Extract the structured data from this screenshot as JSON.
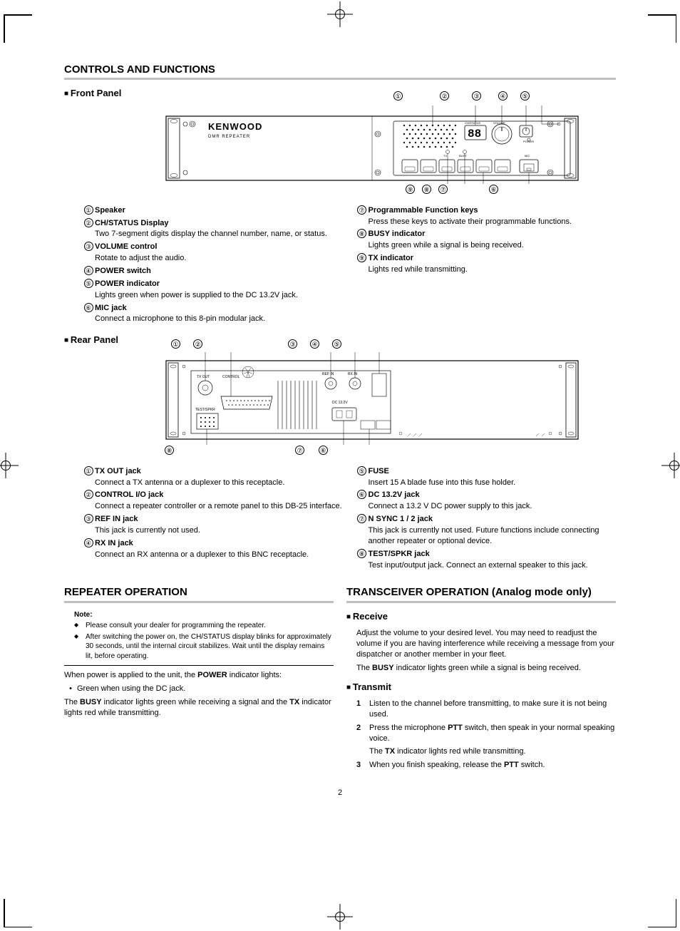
{
  "page_number": "2",
  "section1": {
    "title": "CONTROLS AND FUNCTIONS",
    "front_panel": {
      "heading": "Front Panel",
      "brand": "KENWOOD",
      "subbrand": "DMR REPEATER",
      "left_items": [
        {
          "n": "①",
          "title": "Speaker",
          "text": ""
        },
        {
          "n": "②",
          "title": "CH/STATUS Display",
          "text": "Two 7-segment digits display the channel number, name, or status."
        },
        {
          "n": "③",
          "title": "VOLUME control",
          "text": "Rotate to adjust the audio."
        },
        {
          "n": "④",
          "title": "POWER switch",
          "text": ""
        },
        {
          "n": "⑤",
          "title": "POWER indicator",
          "text": "Lights green when power is supplied to the DC 13.2V jack."
        },
        {
          "n": "⑥",
          "title": "MIC jack",
          "text": "Connect a microphone to this 8-pin modular jack."
        }
      ],
      "right_items": [
        {
          "n": "⑦",
          "title": "Programmable Function keys",
          "text": "Press these keys to activate their programmable functions."
        },
        {
          "n": "⑧",
          "title": "BUSY indicator",
          "text": "Lights green while a signal is being received."
        },
        {
          "n": "⑨",
          "title": "TX indicator",
          "text": "Lights red while transmitting."
        }
      ],
      "top_callouts": [
        "①",
        "②",
        "③",
        "④",
        "⑤"
      ],
      "bottom_callouts": [
        "⑨",
        "⑧",
        "⑦",
        "⑥"
      ],
      "display_text": "88",
      "labels": {
        "volume": "VOLUME",
        "power": "POWER",
        "mic": "MIC",
        "chstatus": "CH/STATUS",
        "busy": "BUSY",
        "tx": "TX"
      }
    },
    "rear_panel": {
      "heading": "Rear Panel",
      "top_callouts": [
        "①",
        "②",
        "③",
        "④",
        "⑤"
      ],
      "bottom_callouts": [
        "⑧",
        "⑦",
        "⑥"
      ],
      "left_items": [
        {
          "n": "①",
          "title": "TX OUT jack",
          "text": "Connect a TX antenna or a duplexer to this receptacle."
        },
        {
          "n": "②",
          "title": "CONTROL I/O jack",
          "text": "Connect a repeater controller or a remote panel to this DB-25 interface."
        },
        {
          "n": "③",
          "title": "REF IN jack",
          "text": "This jack is currently not used."
        },
        {
          "n": "④",
          "title": "RX IN jack",
          "text": "Connect an RX antenna or a duplexer to this BNC receptacle."
        }
      ],
      "right_items": [
        {
          "n": "⑤",
          "title": "FUSE",
          "text": "Insert 15 A blade fuse into this fuse holder."
        },
        {
          "n": "⑥",
          "title": "DC 13.2V jack",
          "text": "Connect a 13.2 V DC power supply to this jack."
        },
        {
          "n": "⑦",
          "title": "N SYNC 1 / 2 jack",
          "text": "This jack is currently not used.  Future functions include connecting another repeater or optional device."
        },
        {
          "n": "⑧",
          "title": "TEST/SPKR jack",
          "text": "Test input/output jack.  Connect an external speaker to this jack."
        }
      ],
      "labels": {
        "txout": "TX OUT",
        "control": "CONTROL",
        "refin": "REF IN",
        "rxin": "RX IN",
        "dc132v": "DC 13.2V",
        "testspkr": "TEST/SPKR"
      }
    }
  },
  "section2": {
    "title": "REPEATER OPERATION",
    "note_label": "Note:",
    "notes": [
      "Please consult your dealer for programming the repeater.",
      "After switching the power on, the CH/STATUS display blinks for approximately 30 seconds, until the internal circuit stabilizes.  Wait until the display remains lit, before operating."
    ],
    "p1_pre": "When power is applied to the unit, the ",
    "p1_bold": "POWER",
    "p1_post": " indicator lights:",
    "bullet": "Green when using the DC jack.",
    "p2_a": "The ",
    "p2_b1": "BUSY",
    "p2_c": " indicator lights green while receiving a signal and the ",
    "p2_b2": "TX",
    "p2_d": " indicator lights red while transmitting."
  },
  "section3": {
    "title": "TRANSCEIVER OPERATION (Analog mode only)",
    "receive": {
      "heading": "Receive",
      "p1": "Adjust the volume to your desired level.  You may need to readjust the volume if you are having interference while receiving a message from your dispatcher or another member in your fleet.",
      "p2_a": "The ",
      "p2_bold": "BUSY",
      "p2_b": " indicator lights green while a signal is being received."
    },
    "transmit": {
      "heading": "Transmit",
      "steps": [
        {
          "n": "1",
          "t": "Listen to the channel before transmitting, to make sure it is not being used."
        },
        {
          "n": "2",
          "t_a": "Press the microphone ",
          "t_bold": "PTT",
          "t_b": " switch, then speak in your normal speaking voice."
        },
        {
          "n": "3",
          "t_a": "When you finish speaking, release the ",
          "t_bold": "PTT",
          "t_b": " switch."
        }
      ],
      "sub_a": "The ",
      "sub_bold": "TX",
      "sub_b": " indicator lights red while transmitting."
    }
  },
  "colors": {
    "rule": "#bfbfbf",
    "text": "#000000",
    "bg": "#ffffff"
  }
}
